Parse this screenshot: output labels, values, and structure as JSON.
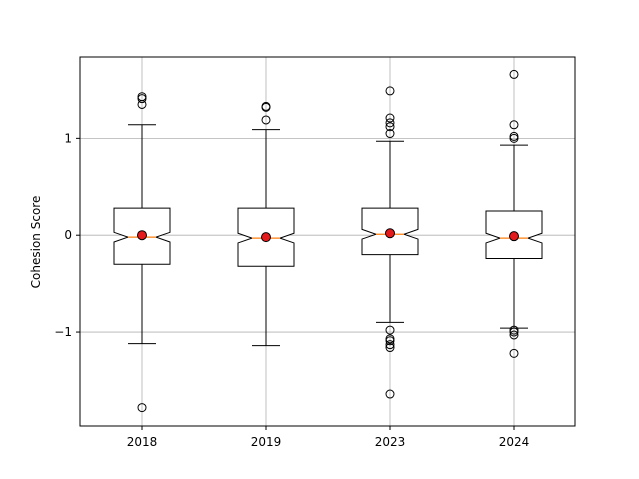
{
  "chart_data": {
    "type": "boxplot",
    "title": "",
    "xlabel": "",
    "ylabel": "Cohesion Score",
    "notched": true,
    "grid": true,
    "ylim": [
      -1.97,
      1.84
    ],
    "yticks": [
      -1,
      0,
      1
    ],
    "ytick_labels": [
      "−1",
      "0",
      "1"
    ],
    "categories": [
      "2018",
      "2019",
      "2023",
      "2024"
    ],
    "boxes": [
      {
        "category": "2018",
        "whisker_low": -1.12,
        "q1": -0.3,
        "median": -0.02,
        "q3": 0.28,
        "whisker_high": 1.14,
        "notch_low": -0.07,
        "notch_high": 0.03,
        "mean": 0.0,
        "outliers": [
          -1.78,
          1.35,
          1.41,
          1.43
        ]
      },
      {
        "category": "2019",
        "whisker_low": -1.14,
        "q1": -0.32,
        "median": -0.03,
        "q3": 0.28,
        "whisker_high": 1.09,
        "notch_low": -0.08,
        "notch_high": 0.02,
        "mean": -0.02,
        "outliers": [
          1.19,
          1.32,
          1.33
        ]
      },
      {
        "category": "2023",
        "whisker_low": -0.9,
        "q1": -0.2,
        "median": 0.01,
        "q3": 0.28,
        "whisker_high": 0.97,
        "notch_low": -0.04,
        "notch_high": 0.06,
        "mean": 0.02,
        "outliers": [
          -1.64,
          -1.16,
          -1.13,
          -1.09,
          -1.07,
          -0.98,
          1.05,
          1.12,
          1.16,
          1.21,
          1.49
        ]
      },
      {
        "category": "2024",
        "whisker_low": -0.96,
        "q1": -0.24,
        "median": -0.03,
        "q3": 0.25,
        "whisker_high": 0.93,
        "notch_low": -0.08,
        "notch_high": 0.02,
        "mean": -0.01,
        "outliers": [
          -1.22,
          -1.03,
          -1.0,
          -0.98,
          1.0,
          1.02,
          1.14,
          1.66
        ]
      }
    ],
    "colors": {
      "box_edge": "#000000",
      "median_line": "#ff7f0e",
      "mean_marker": "#e41a1c",
      "outlier_edge": "#000000",
      "grid": "#b0b0b0"
    }
  }
}
